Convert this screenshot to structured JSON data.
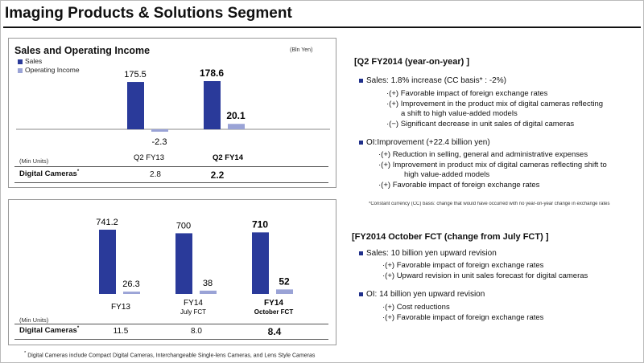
{
  "title": "Imaging Products & Solutions Segment",
  "left": {
    "chart_title": "Sales and Operating Income",
    "unit": "(Bln Yen)",
    "legend": [
      {
        "label": "Sales",
        "color": "#2a3a9a"
      },
      {
        "label": "Operating Income",
        "color": "#9aa3d6"
      }
    ],
    "min_units": "(Min Units)",
    "digital_cameras_label": "Digital Cameras",
    "footnote": "Digital Cameras include Compact Digital Cameras, Interchangeable Single-lens Cameras, and Lens Style Cameras"
  },
  "chart_data": [
    {
      "type": "bar",
      "categories": [
        "Q2 FY13",
        "Q2 FY14"
      ],
      "series": [
        {
          "name": "Sales",
          "values": [
            175.5,
            178.6
          ]
        },
        {
          "name": "Operating Income",
          "values": [
            -2.3,
            20.1
          ]
        }
      ],
      "value_labels": {
        "Sales": [
          "175.5",
          "178.6"
        ],
        "Operating Income": [
          "-2.3",
          "20.1"
        ]
      },
      "digital_cameras": [
        "2.8",
        "2.2"
      ]
    },
    {
      "type": "bar",
      "categories": [
        "FY13",
        "FY14 July FCT",
        "FY14 October FCT"
      ],
      "category_lines": [
        [
          "FY13"
        ],
        [
          "FY14",
          "July  FCT"
        ],
        [
          "FY14",
          "October FCT"
        ]
      ],
      "series": [
        {
          "name": "Sales",
          "values": [
            741.2,
            700,
            710
          ]
        },
        {
          "name": "Operating Income",
          "values": [
            26.3,
            38,
            52
          ]
        }
      ],
      "value_labels": {
        "Sales": [
          "741.2",
          "700",
          "710"
        ],
        "Operating Income": [
          "26.3",
          "38",
          "52"
        ]
      },
      "digital_cameras": [
        "11.5",
        "8.0",
        "8.4"
      ]
    }
  ],
  "right": {
    "q2": {
      "heading": "[Q2 FY2014 (year-on-year) ]",
      "sales": "Sales: 1.8% increase (CC basis* :  -2%)",
      "sales_items": [
        [
          "(+)",
          "Favorable impact of foreign exchange rates"
        ],
        [
          "(+)",
          "Improvement in the product mix of digital cameras reflecting",
          "a shift to high value-added models"
        ],
        [
          "(−)",
          "Significant decrease in unit sales of digital cameras"
        ]
      ],
      "oi": "OI:Improvement (+22.4 billion yen)",
      "oi_items": [
        [
          "(+)",
          "Reduction in selling, general and administrative expenses"
        ],
        [
          "(+)",
          "Improvement in product mix of digital cameras reflecting shift to",
          "high value-added models"
        ],
        [
          "(+)",
          "Favorable impact of foreign exchange rates"
        ]
      ],
      "note": "*Constant currency (CC) basis: change that would have occurred with no year-on-year change in exchange rates"
    },
    "fct": {
      "heading": "[FY2014 October FCT (change from July FCT) ]",
      "sales": "Sales: 10 billion yen upward revision",
      "sales_items": [
        [
          "(+)",
          "Favorable impact of foreign exchange rates"
        ],
        [
          "(+)",
          "Upward revision in unit sales forecast for digital cameras"
        ]
      ],
      "oi": "OI: 14 billion yen upward revision",
      "oi_items": [
        [
          "(+)",
          "Cost reductions"
        ],
        [
          "(+)",
          "Favorable impact of foreign exchange rates"
        ]
      ]
    }
  }
}
